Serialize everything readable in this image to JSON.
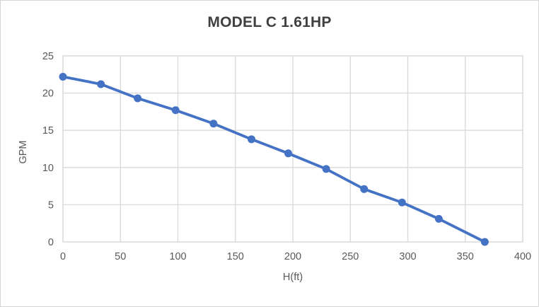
{
  "chart_data": {
    "type": "line",
    "title": "MODEL C 1.61HP",
    "xlabel": "H(ft)",
    "ylabel": "GPM",
    "x": [
      0,
      33,
      65,
      98,
      131,
      164,
      196,
      229,
      262,
      295,
      327,
      367
    ],
    "y": [
      22.2,
      21.2,
      19.3,
      17.7,
      15.9,
      13.8,
      11.9,
      9.8,
      7.1,
      5.3,
      3.1,
      0
    ],
    "xlim": [
      0,
      400
    ],
    "ylim": [
      0,
      25
    ],
    "x_ticks": [
      0,
      50,
      100,
      150,
      200,
      250,
      300,
      350,
      400
    ],
    "y_ticks": [
      0,
      5,
      10,
      15,
      20,
      25
    ],
    "grid": true,
    "legend": "none",
    "marker": "circle",
    "colors": {
      "series": "#4472c4",
      "gridline": "#d9d9d9",
      "plot_border": "#d9d9d9",
      "tick_label": "#595959",
      "title": "#404040",
      "background": "#ffffff"
    }
  }
}
